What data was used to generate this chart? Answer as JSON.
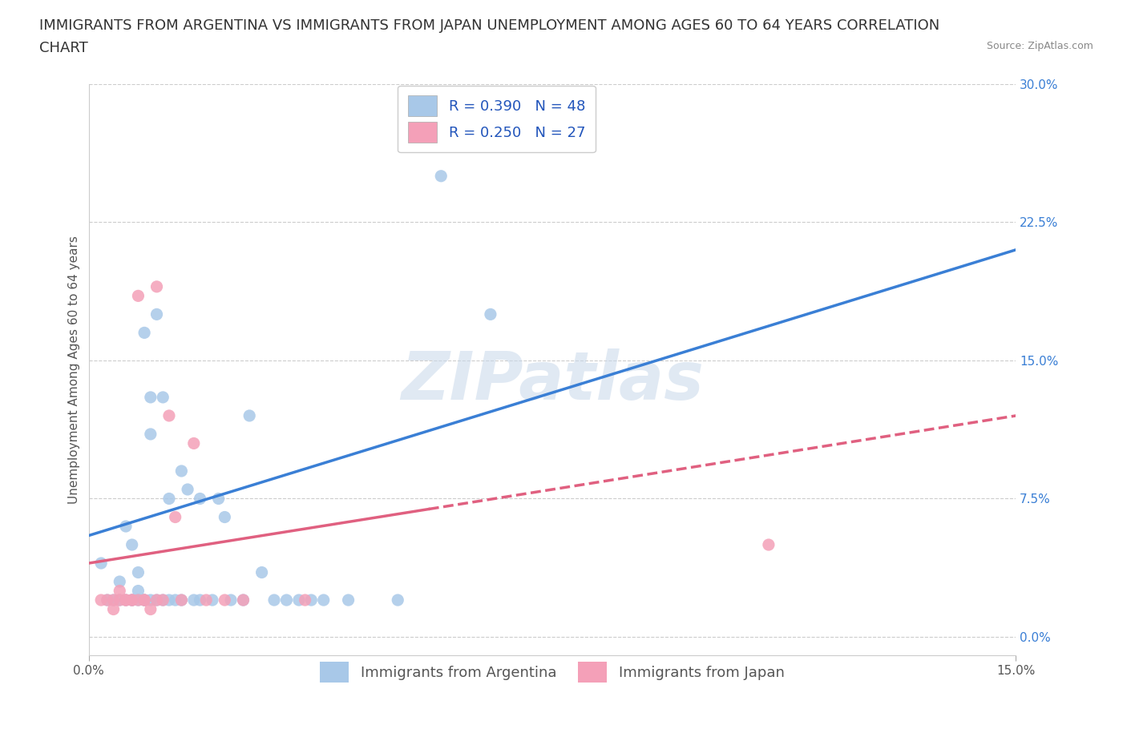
{
  "title_line1": "IMMIGRANTS FROM ARGENTINA VS IMMIGRANTS FROM JAPAN UNEMPLOYMENT AMONG AGES 60 TO 64 YEARS CORRELATION",
  "title_line2": "CHART",
  "source": "Source: ZipAtlas.com",
  "ylabel": "Unemployment Among Ages 60 to 64 years",
  "xlim": [
    0.0,
    0.15
  ],
  "ylim": [
    -0.01,
    0.3
  ],
  "yticks": [
    0.0,
    0.075,
    0.15,
    0.225,
    0.3
  ],
  "ytick_labels": [
    "0.0%",
    "7.5%",
    "15.0%",
    "22.5%",
    "30.0%"
  ],
  "xtick_positions": [
    0.0,
    0.15
  ],
  "xtick_labels": [
    "0.0%",
    "15.0%"
  ],
  "r_argentina": 0.39,
  "n_argentina": 48,
  "r_japan": 0.25,
  "n_japan": 27,
  "argentina_color": "#a8c8e8",
  "japan_color": "#f4a0b8",
  "argentina_line_color": "#3a7fd5",
  "japan_line_color": "#e06080",
  "legend_label_argentina": "Immigrants from Argentina",
  "legend_label_japan": "Immigrants from Japan",
  "watermark": "ZIPatlas",
  "argentina_x": [
    0.002,
    0.003,
    0.004,
    0.005,
    0.005,
    0.006,
    0.006,
    0.007,
    0.007,
    0.007,
    0.008,
    0.008,
    0.008,
    0.009,
    0.009,
    0.009,
    0.01,
    0.01,
    0.01,
    0.011,
    0.011,
    0.012,
    0.012,
    0.013,
    0.013,
    0.014,
    0.015,
    0.015,
    0.016,
    0.017,
    0.018,
    0.018,
    0.02,
    0.021,
    0.022,
    0.023,
    0.025,
    0.026,
    0.028,
    0.03,
    0.032,
    0.034,
    0.036,
    0.038,
    0.042,
    0.05,
    0.057,
    0.065
  ],
  "argentina_y": [
    0.04,
    0.02,
    0.02,
    0.03,
    0.02,
    0.06,
    0.02,
    0.02,
    0.05,
    0.02,
    0.025,
    0.035,
    0.02,
    0.165,
    0.02,
    0.02,
    0.13,
    0.11,
    0.02,
    0.02,
    0.175,
    0.13,
    0.02,
    0.02,
    0.075,
    0.02,
    0.02,
    0.09,
    0.08,
    0.02,
    0.02,
    0.075,
    0.02,
    0.075,
    0.065,
    0.02,
    0.02,
    0.12,
    0.035,
    0.02,
    0.02,
    0.02,
    0.02,
    0.02,
    0.02,
    0.02,
    0.25,
    0.175
  ],
  "japan_x": [
    0.002,
    0.003,
    0.004,
    0.004,
    0.005,
    0.005,
    0.006,
    0.006,
    0.007,
    0.007,
    0.008,
    0.008,
    0.009,
    0.009,
    0.01,
    0.011,
    0.011,
    0.012,
    0.013,
    0.014,
    0.015,
    0.017,
    0.019,
    0.022,
    0.025,
    0.035,
    0.11
  ],
  "japan_y": [
    0.02,
    0.02,
    0.02,
    0.015,
    0.025,
    0.02,
    0.02,
    0.02,
    0.02,
    0.02,
    0.02,
    0.185,
    0.02,
    0.02,
    0.015,
    0.19,
    0.02,
    0.02,
    0.12,
    0.065,
    0.02,
    0.105,
    0.02,
    0.02,
    0.02,
    0.02,
    0.05
  ],
  "background_color": "#ffffff",
  "grid_color": "#cccccc",
  "title_fontsize": 13,
  "axis_label_fontsize": 11,
  "tick_fontsize": 11,
  "legend_fontsize": 13,
  "right_tick_color": "#3a7fd5"
}
